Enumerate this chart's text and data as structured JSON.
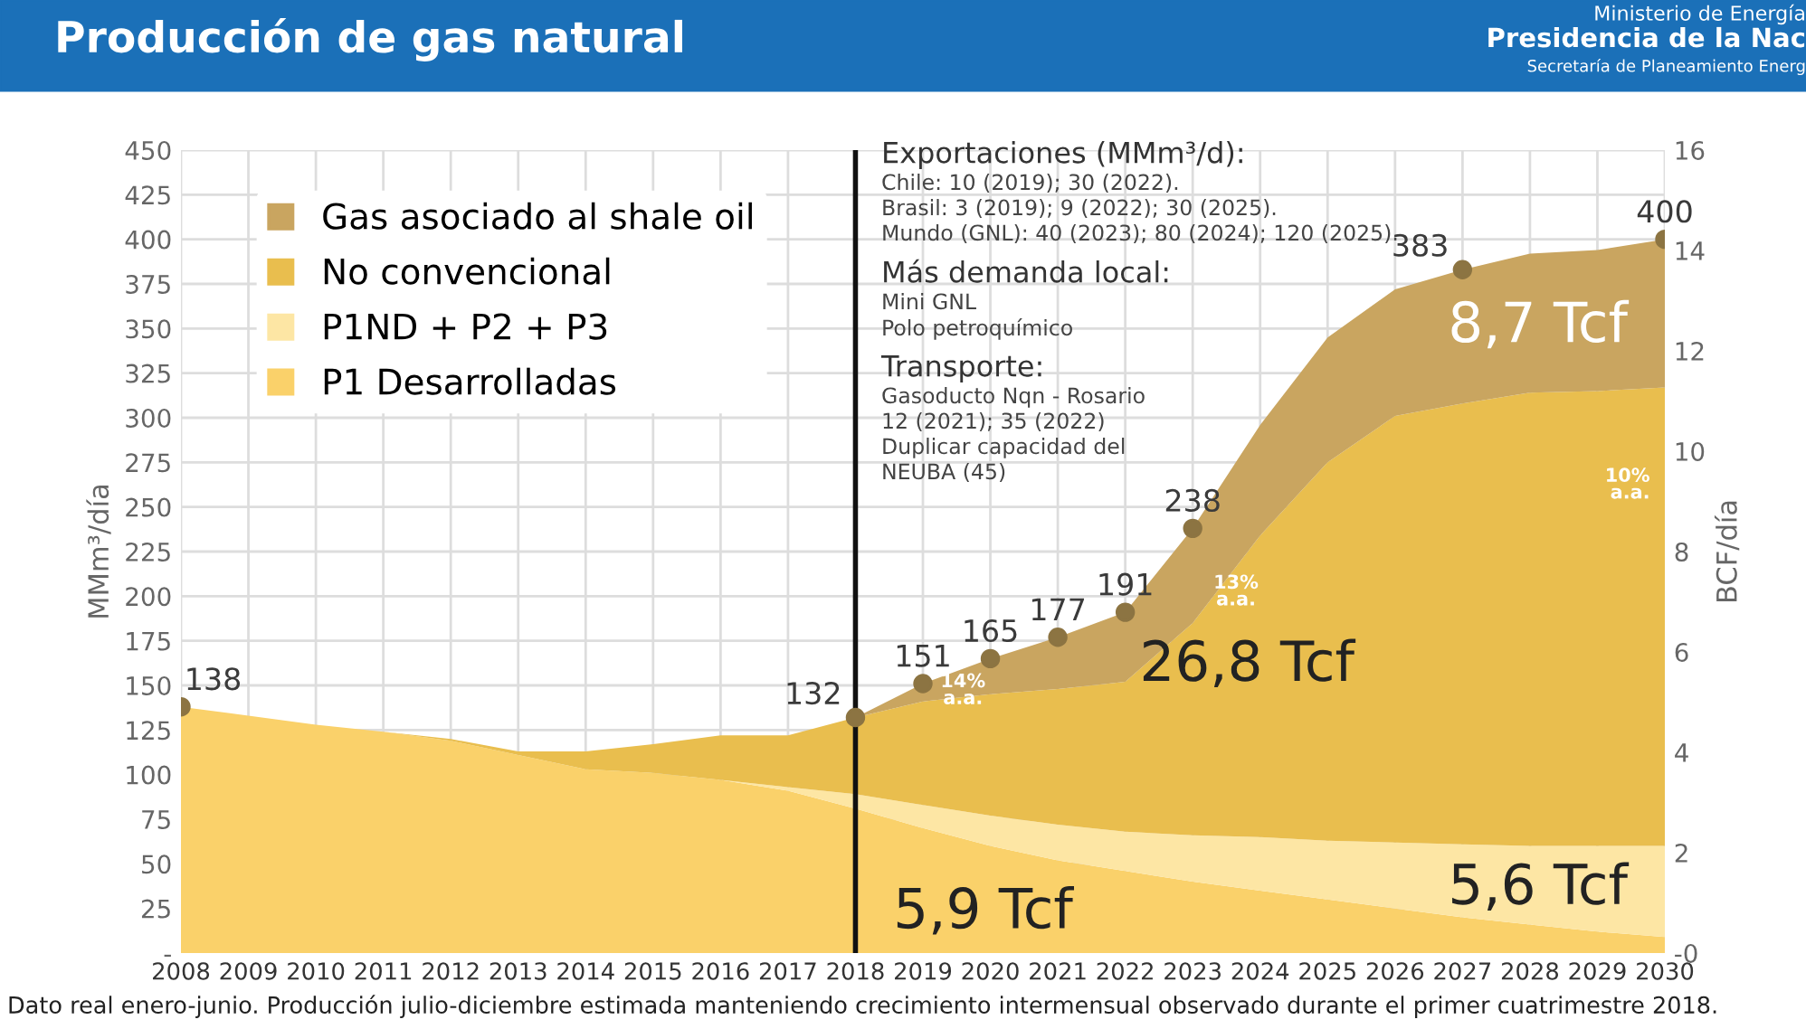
{
  "chart_data": {
    "type": "area",
    "title": "Producción de gas natural",
    "stacked": true,
    "ylabel": "MMm³/día",
    "y2label": "BCF/día",
    "categories": [
      "2008",
      "2009",
      "2010",
      "2011",
      "2012",
      "2013",
      "2014",
      "2015",
      "2016",
      "2017",
      "2018",
      "2019",
      "2020",
      "2021",
      "2022",
      "2023",
      "2024",
      "2025",
      "2026",
      "2027",
      "2028",
      "2029",
      "2030"
    ],
    "series": [
      {
        "name": "P1 Desarrolladas",
        "color": "#fad16a",
        "values": [
          138,
          133,
          128,
          124,
          119,
          111,
          103,
          101,
          97,
          91,
          81,
          70,
          60,
          52,
          46,
          40,
          35,
          30,
          25,
          20,
          16,
          12,
          9
        ]
      },
      {
        "name": "P1ND + P2 + P3",
        "color": "#fde6a4",
        "values": [
          0,
          0,
          0,
          0,
          0,
          0,
          0,
          0,
          0,
          2,
          8,
          13,
          17,
          20,
          22,
          26,
          30,
          33,
          37,
          41,
          44,
          48,
          51
        ]
      },
      {
        "name": "No convencional",
        "color": "#e9be4e",
        "values": [
          0,
          0,
          0,
          0,
          1,
          2,
          10,
          16,
          25,
          29,
          43,
          58,
          68,
          76,
          84,
          119,
          169,
          212,
          239,
          247,
          254,
          255,
          257
        ]
      },
      {
        "name": "Gas asociado al shale oil",
        "color": "#c9a560",
        "values": [
          0,
          0,
          0,
          0,
          0,
          0,
          0,
          0,
          0,
          0,
          0,
          10,
          20,
          29,
          39,
          53,
          62,
          70,
          71,
          75,
          78,
          79,
          83
        ]
      },
      {
        "type": "scatter",
        "color": "#8c7442",
        "values": [
          138,
          null,
          null,
          null,
          null,
          null,
          null,
          null,
          null,
          null,
          132,
          151,
          165,
          177,
          191,
          238,
          null,
          null,
          null,
          383,
          null,
          null,
          400
        ],
        "value_labels": [
          "138",
          null,
          null,
          null,
          null,
          null,
          null,
          null,
          null,
          null,
          "132",
          "151",
          "165",
          "177",
          "191",
          "238",
          null,
          null,
          null,
          "383",
          null,
          null,
          "400"
        ]
      }
    ],
    "ylim": [
      0,
      450
    ],
    "yticks": [
      {
        "value": 0,
        "label": "-"
      },
      25,
      50,
      75,
      100,
      125,
      150,
      175,
      200,
      225,
      250,
      275,
      300,
      325,
      350,
      375,
      400,
      425,
      450
    ],
    "y2lim": [
      0,
      16
    ],
    "y2ticks": [
      {
        "value": 0,
        "label": "-0"
      },
      2,
      4,
      6,
      8,
      10,
      12,
      14,
      16
    ],
    "grid": true,
    "legend": "top left",
    "ref_lines": [
      {
        "axis": "x",
        "value": "2018",
        "color": "#111111"
      }
    ],
    "annotations": [
      "Dato real enero-junio. Producción julio-diciembre estimada manteniendo crecimiento intermensual observado durante el primer cuatrimestre 2018.",
      "Ministerio de Energía\nPresidencia de la Nac\nSecretaría de Planeamiento Energ",
      "Exportaciones (MMm³/d):\nChile: 10 (2019); 30 (2022).\nBrasil: 3 (2019); 9 (2022); 30 (2025).\nMundo (GNL): 40 (2023); 80 (2024); 120 (2025).",
      "Más demanda local:\nMini GNL\nPolo petroquímico",
      "Transporte:\nGasoducto Nqn - Rosario\n12 (2021); 35 (2022)\nDuplicar capacidad del\nNEUBA (45)",
      "5,9 Tcf",
      "5,6 Tcf",
      "26,8 Tcf",
      "8,7 Tcf",
      "14%\na.a.",
      "13%\na.a.",
      "10%\na.a."
    ]
  }
}
